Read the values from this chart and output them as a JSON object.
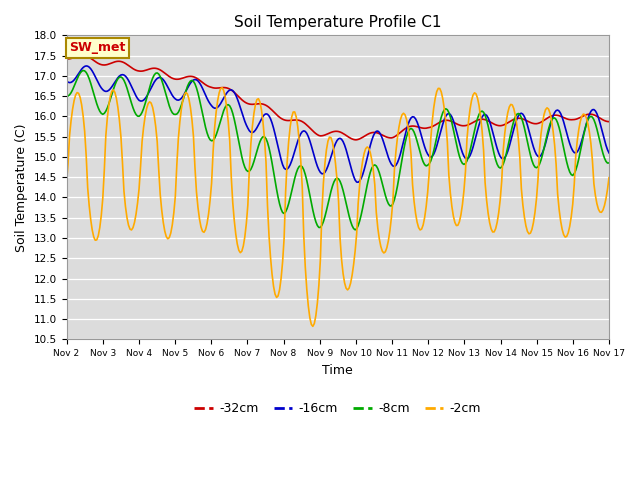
{
  "title": "Soil Temperature Profile C1",
  "xlabel": "Time",
  "ylabel": "Soil Temperature (C)",
  "ylim": [
    10.5,
    18.0
  ],
  "yticks": [
    10.5,
    11.0,
    11.5,
    12.0,
    12.5,
    13.0,
    13.5,
    14.0,
    14.5,
    15.0,
    15.5,
    16.0,
    16.5,
    17.0,
    17.5,
    18.0
  ],
  "xtick_labels": [
    "Nov 2",
    "Nov 3",
    "Nov 4",
    "Nov 5",
    "Nov 6",
    "Nov 7",
    "Nov 8",
    "Nov 9",
    "Nov 10",
    "Nov 11",
    "Nov 12",
    "Nov 13",
    "Nov 14",
    "Nov 15",
    "Nov 16",
    "Nov 17"
  ],
  "legend_labels": [
    "-32cm",
    "-16cm",
    "-8cm",
    "-2cm"
  ],
  "legend_colors": [
    "#cc0000",
    "#0000cc",
    "#00aa00",
    "#ffaa00"
  ],
  "annotation_text": "SW_met",
  "annotation_color": "#cc0000",
  "annotation_bg": "#ffffcc",
  "annotation_border": "#aa8800",
  "background_color": "#dcdcdc"
}
